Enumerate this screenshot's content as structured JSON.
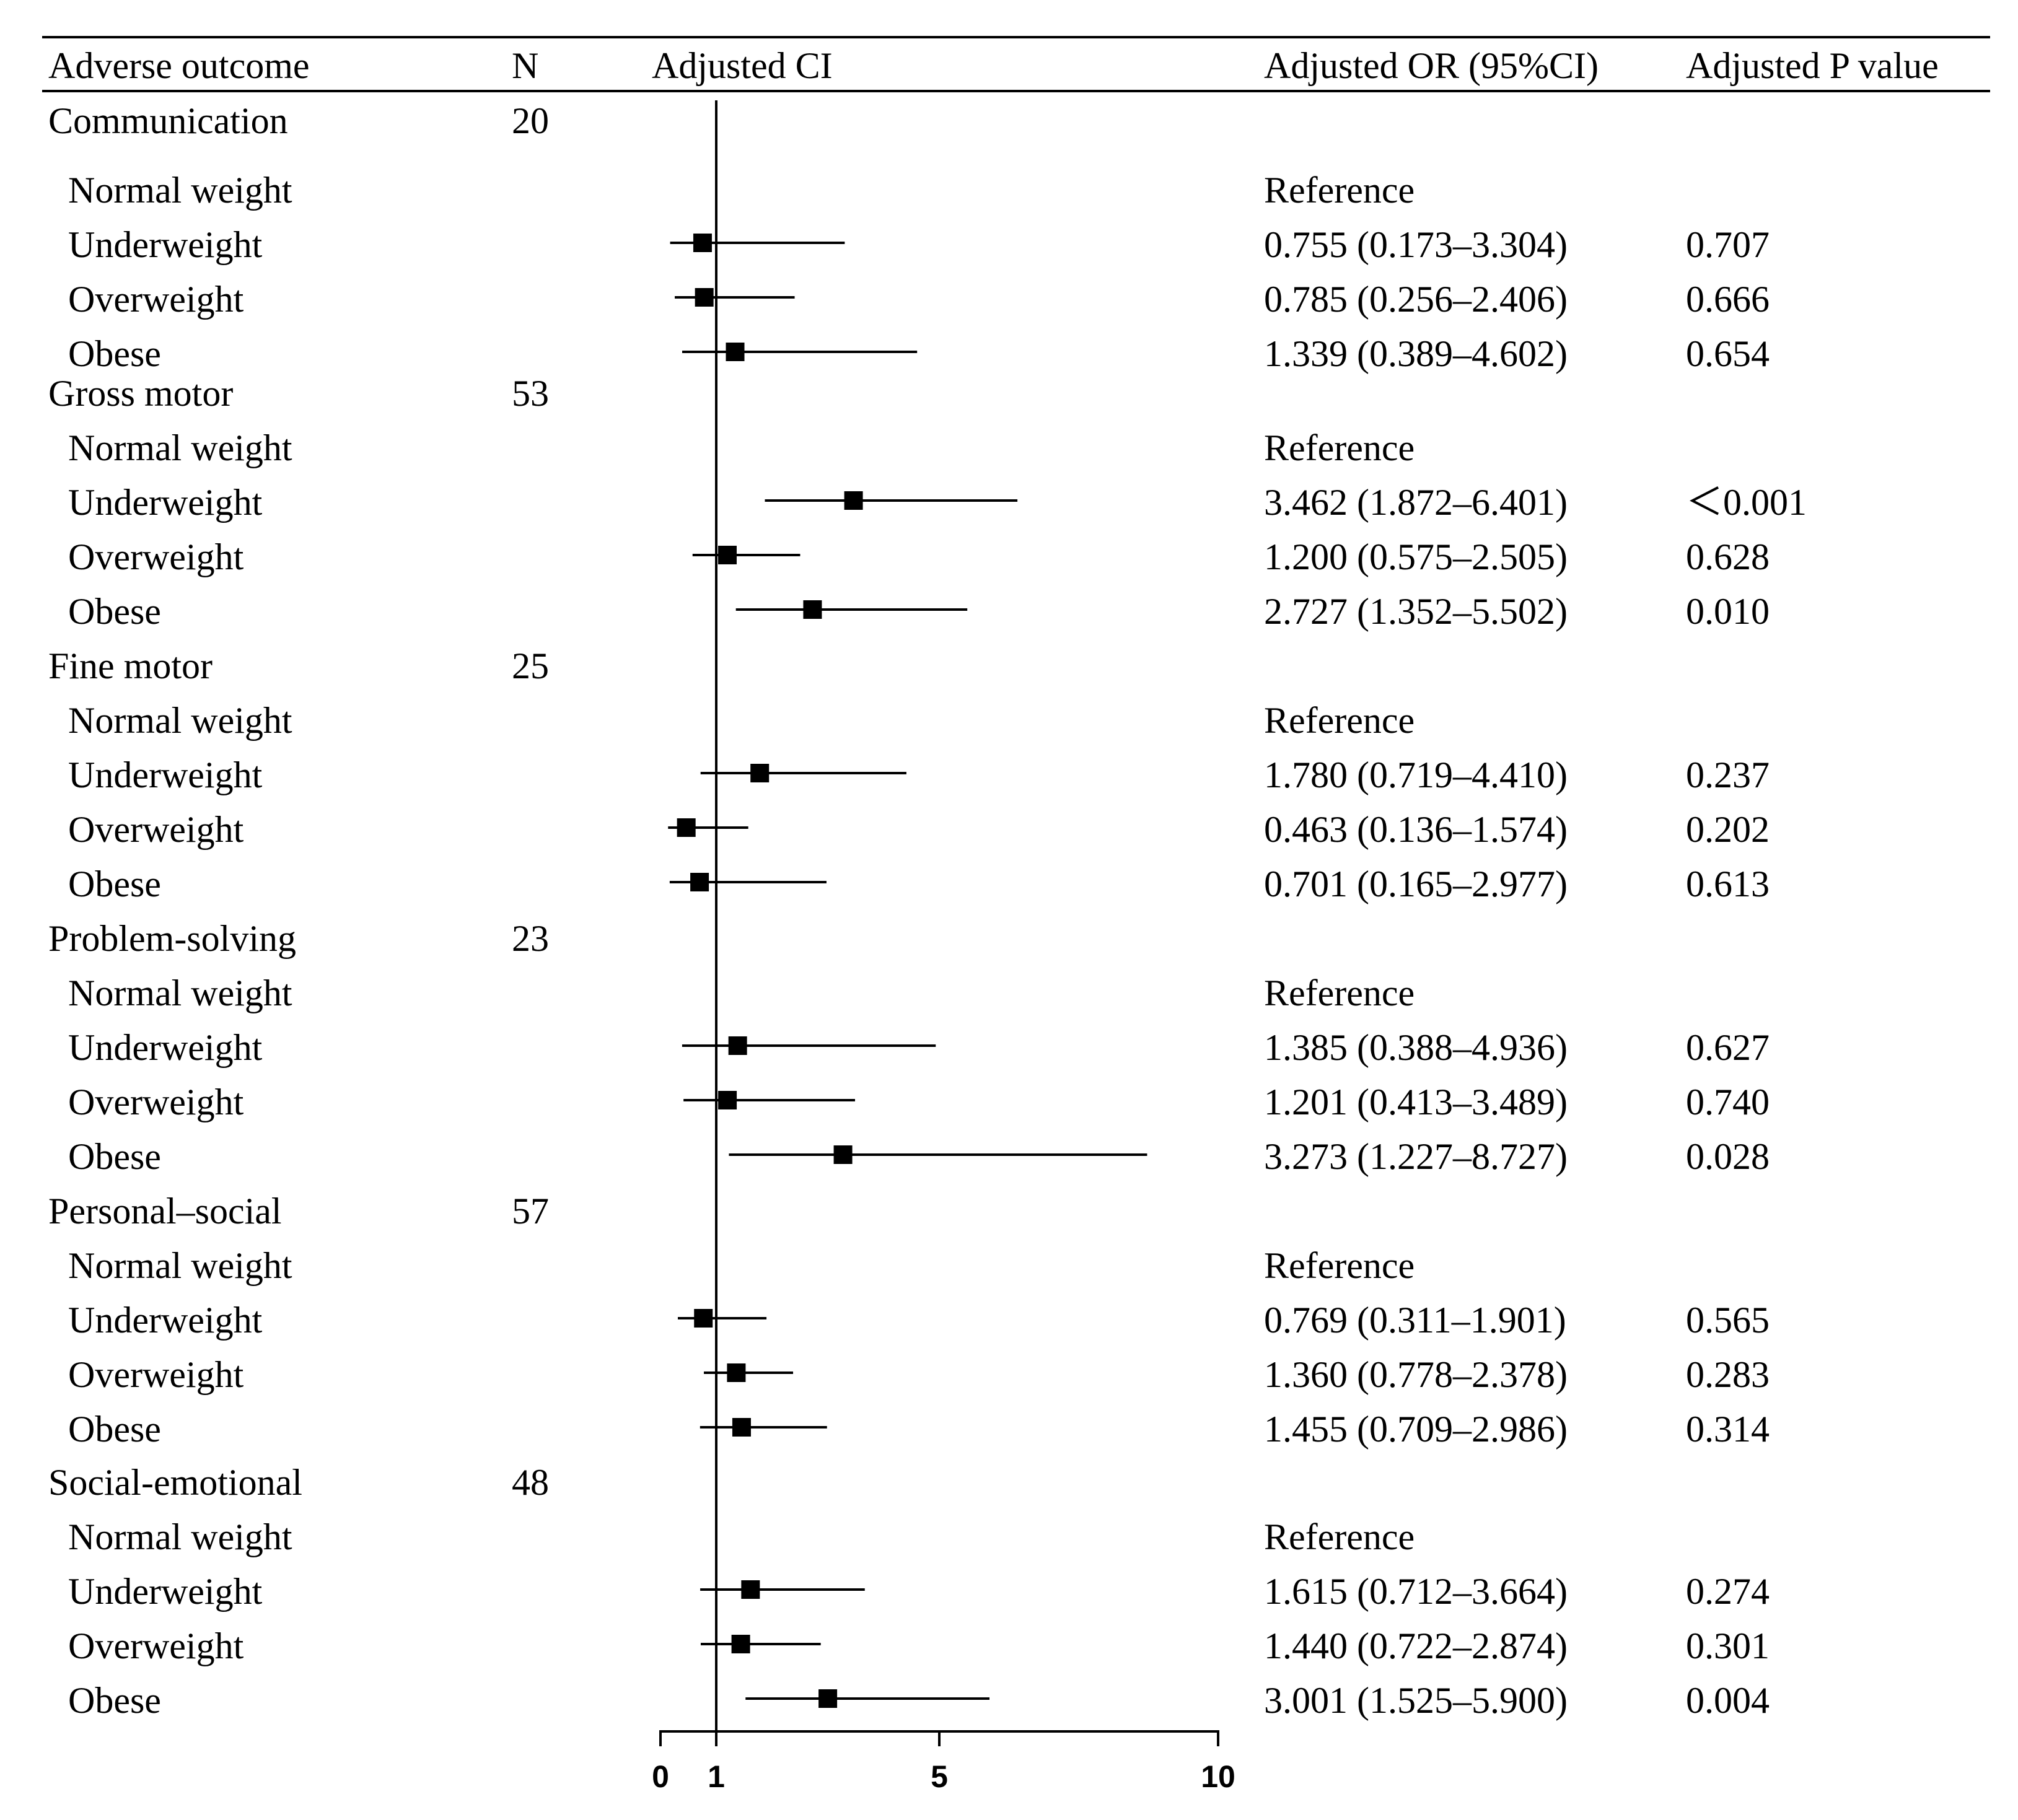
{
  "header": {
    "outcome": "Adverse outcome",
    "n": "N",
    "ci": "Adjusted CI",
    "or": "Adjusted OR (95%CI)",
    "p": "Adjusted P value"
  },
  "groups": [
    {
      "label": "Communication",
      "n": "20",
      "rows": [
        {
          "label": "Normal weight",
          "or_text": "Reference",
          "p_text": ""
        },
        {
          "label": "Underweight",
          "or_text": "0.755 (0.173–3.304)",
          "p_text": "0.707"
        },
        {
          "label": "Overweight",
          "or_text": "0.785 (0.256–2.406)",
          "p_text": "0.666"
        },
        {
          "label": "Obese",
          "or_text": "1.339 (0.389–4.602)",
          "p_text": "0.654"
        }
      ]
    },
    {
      "label": "Gross motor",
      "n": "53",
      "rows": [
        {
          "label": "Normal weight",
          "or_text": "Reference",
          "p_text": ""
        },
        {
          "label": "Underweight",
          "or_text": "3.462 (1.872–6.401)",
          "p_text": "＜0.001"
        },
        {
          "label": "Overweight",
          "or_text": "1.200 (0.575–2.505)",
          "p_text": "0.628"
        },
        {
          "label": "Obese",
          "or_text": "2.727 (1.352–5.502)",
          "p_text": "0.010"
        }
      ]
    },
    {
      "label": "Fine motor",
      "n": "25",
      "rows": [
        {
          "label": "Normal weight",
          "or_text": "Reference",
          "p_text": ""
        },
        {
          "label": "Underweight",
          "or_text": "1.780 (0.719–4.410)",
          "p_text": "0.237"
        },
        {
          "label": "Overweight",
          "or_text": "0.463 (0.136–1.574)",
          "p_text": "0.202"
        },
        {
          "label": "Obese",
          "or_text": "0.701 (0.165–2.977)",
          "p_text": "0.613"
        }
      ]
    },
    {
      "label": "Problem-solving",
      "n": "23",
      "rows": [
        {
          "label": "Normal weight",
          "or_text": "Reference",
          "p_text": ""
        },
        {
          "label": "Underweight",
          "or_text": "1.385 (0.388–4.936)",
          "p_text": "0.627"
        },
        {
          "label": "Overweight",
          "or_text": "1.201 (0.413–3.489)",
          "p_text": "0.740"
        },
        {
          "label": "Obese",
          "or_text": "3.273 (1.227–8.727)",
          "p_text": "0.028"
        }
      ]
    },
    {
      "label": "Personal–social",
      "n": "57",
      "rows": [
        {
          "label": "Normal weight",
          "or_text": "Reference",
          "p_text": ""
        },
        {
          "label": "Underweight",
          "or_text": "0.769 (0.311–1.901)",
          "p_text": "0.565"
        },
        {
          "label": "Overweight",
          "or_text": "1.360 (0.778–2.378)",
          "p_text": "0.283"
        },
        {
          "label": "Obese",
          "or_text": "1.455 (0.709–2.986)",
          "p_text": "0.314"
        }
      ]
    },
    {
      "label": "Social-emotional",
      "n": "48",
      "rows": [
        {
          "label": "Normal weight",
          "or_text": "Reference",
          "p_text": ""
        },
        {
          "label": "Underweight",
          "or_text": "1.615 (0.712–3.664)",
          "p_text": "0.274"
        },
        {
          "label": "Overweight",
          "or_text": "1.440 (0.722–2.874)",
          "p_text": "0.301"
        },
        {
          "label": "Obese",
          "or_text": "3.001 (1.525–5.900)",
          "p_text": "0.004"
        }
      ]
    }
  ],
  "chart_data": {
    "type": "forest",
    "title": "",
    "xlabel": "Adjusted CI",
    "xlim": [
      0,
      10
    ],
    "xticks": [
      0,
      1,
      5,
      10
    ],
    "reference_line": 1,
    "series": [
      {
        "group": "Communication",
        "name": "Underweight",
        "or": 0.755,
        "lo": 0.173,
        "hi": 3.304
      },
      {
        "group": "Communication",
        "name": "Overweight",
        "or": 0.785,
        "lo": 0.256,
        "hi": 2.406
      },
      {
        "group": "Communication",
        "name": "Obese",
        "or": 1.339,
        "lo": 0.389,
        "hi": 4.602
      },
      {
        "group": "Gross motor",
        "name": "Underweight",
        "or": 3.462,
        "lo": 1.872,
        "hi": 6.401
      },
      {
        "group": "Gross motor",
        "name": "Overweight",
        "or": 1.2,
        "lo": 0.575,
        "hi": 2.505
      },
      {
        "group": "Gross motor",
        "name": "Obese",
        "or": 2.727,
        "lo": 1.352,
        "hi": 5.502
      },
      {
        "group": "Fine motor",
        "name": "Underweight",
        "or": 1.78,
        "lo": 0.719,
        "hi": 4.41
      },
      {
        "group": "Fine motor",
        "name": "Overweight",
        "or": 0.463,
        "lo": 0.136,
        "hi": 1.574
      },
      {
        "group": "Fine motor",
        "name": "Obese",
        "or": 0.701,
        "lo": 0.165,
        "hi": 2.977
      },
      {
        "group": "Problem-solving",
        "name": "Underweight",
        "or": 1.385,
        "lo": 0.388,
        "hi": 4.936
      },
      {
        "group": "Problem-solving",
        "name": "Overweight",
        "or": 1.201,
        "lo": 0.413,
        "hi": 3.489
      },
      {
        "group": "Problem-solving",
        "name": "Obese",
        "or": 3.273,
        "lo": 1.227,
        "hi": 8.727
      },
      {
        "group": "Personal–social",
        "name": "Underweight",
        "or": 0.769,
        "lo": 0.311,
        "hi": 1.901
      },
      {
        "group": "Personal–social",
        "name": "Overweight",
        "or": 1.36,
        "lo": 0.778,
        "hi": 2.378
      },
      {
        "group": "Personal–social",
        "name": "Obese",
        "or": 1.455,
        "lo": 0.709,
        "hi": 2.986
      },
      {
        "group": "Social-emotional",
        "name": "Underweight",
        "or": 1.615,
        "lo": 0.712,
        "hi": 3.664
      },
      {
        "group": "Social-emotional",
        "name": "Overweight",
        "or": 1.44,
        "lo": 0.722,
        "hi": 2.874
      },
      {
        "group": "Social-emotional",
        "name": "Obese",
        "or": 3.001,
        "lo": 1.525,
        "hi": 5.9
      }
    ]
  }
}
